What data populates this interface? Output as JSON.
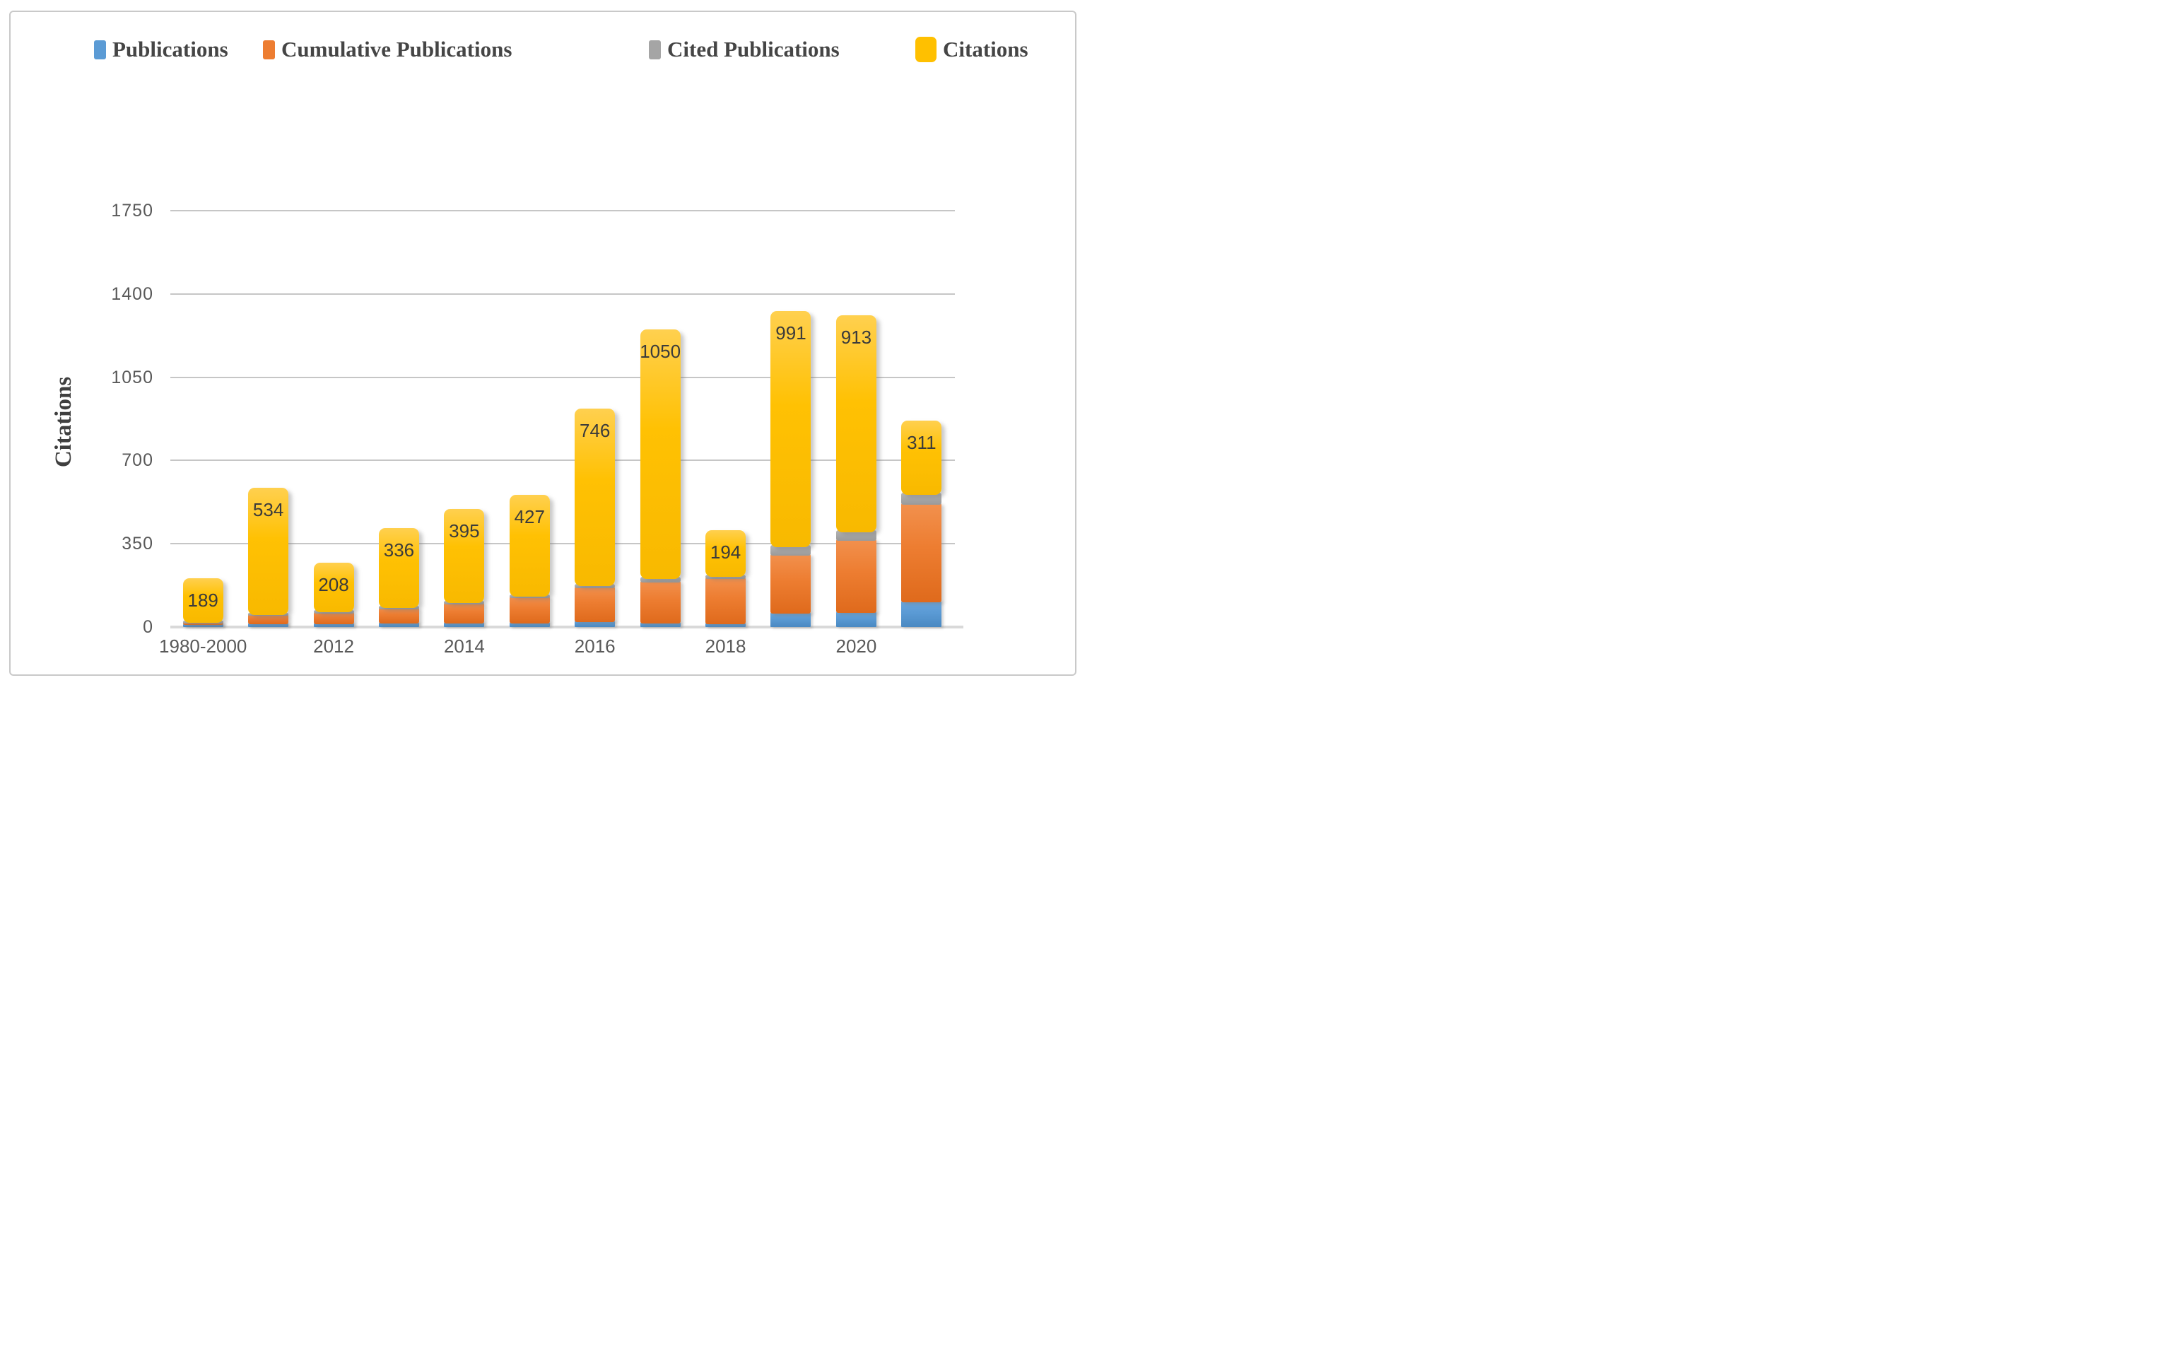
{
  "legend": {
    "items": [
      {
        "label": "Publications",
        "color": "#5B9BD5",
        "swatch": "small"
      },
      {
        "label": "Cumulative Publications",
        "color": "#ED7D31",
        "swatch": "small"
      },
      {
        "label": "Cited Publications",
        "color": "#A5A5A5",
        "swatch": "small"
      },
      {
        "label": "Citations",
        "color": "#FFC000",
        "swatch": "large"
      }
    ]
  },
  "y_axis": {
    "title": "Citations",
    "ticks": [
      0,
      350,
      700,
      1050,
      1400,
      1750
    ]
  },
  "x_axis": {
    "tick_labels": [
      "1980-2000",
      "2012",
      "2014",
      "2016",
      "2018",
      "2020"
    ],
    "tick_positions": [
      0,
      2,
      4,
      6,
      8,
      10
    ]
  },
  "chart_data": {
    "type": "bar",
    "stacked": true,
    "title": "",
    "xlabel": "",
    "ylabel": "Citations",
    "ylim": [
      0,
      1750
    ],
    "grid": true,
    "legend_position": "top",
    "categories": [
      "1980-2000",
      "",
      "2012",
      "",
      "2014",
      "",
      "2016",
      "",
      "2018",
      "",
      "2020",
      ""
    ],
    "series": [
      {
        "name": "Publications",
        "color": "#5B9BD5",
        "values": [
          8,
          12,
          12,
          14,
          14,
          16,
          22,
          16,
          12,
          55,
          58,
          105
        ]
      },
      {
        "name": "Cumulative Publications",
        "color": "#ED7D31",
        "values": [
          7,
          35,
          45,
          60,
          80,
          105,
          140,
          170,
          190,
          245,
          305,
          410
        ]
      },
      {
        "name": "Cited Publications",
        "color": "#A5A5A5",
        "values": [
          2,
          4,
          5,
          6,
          8,
          8,
          10,
          15,
          10,
          37,
          35,
          42
        ]
      },
      {
        "name": "Citations",
        "color": "#FFC000",
        "values": [
          189,
          534,
          208,
          336,
          395,
          427,
          746,
          1050,
          194,
          991,
          913,
          311
        ]
      }
    ],
    "data_labels": [
      189,
      534,
      208,
      336,
      395,
      427,
      746,
      1050,
      194,
      991,
      913,
      311
    ]
  }
}
